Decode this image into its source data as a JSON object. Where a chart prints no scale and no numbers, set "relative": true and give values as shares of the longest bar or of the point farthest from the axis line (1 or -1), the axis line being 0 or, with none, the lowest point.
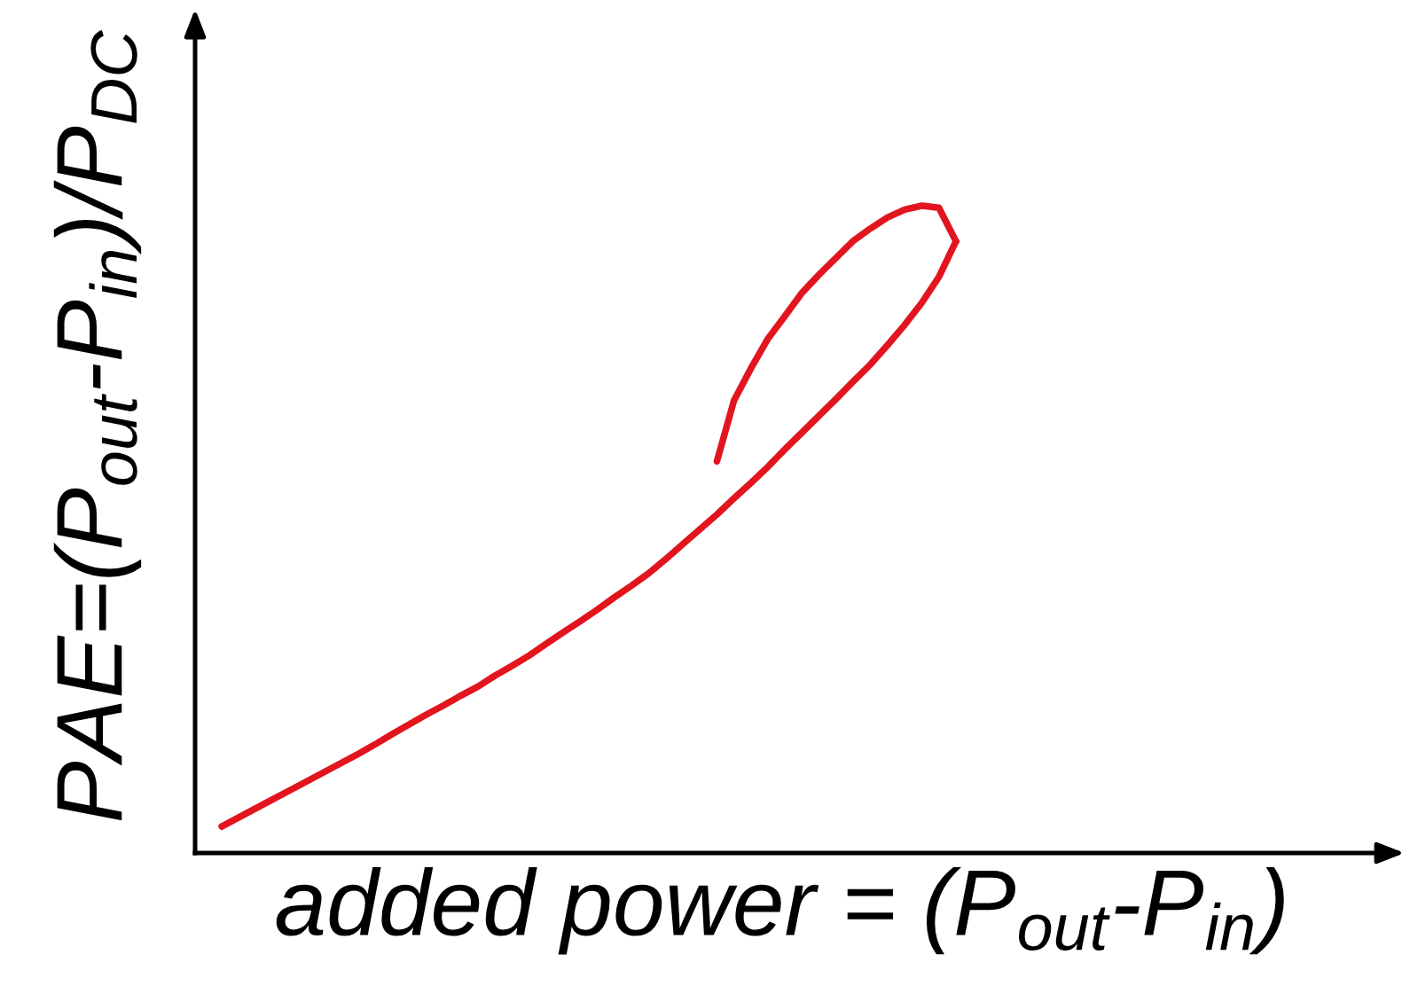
{
  "chart_data": {
    "type": "line",
    "relative": true,
    "line_style": "solid",
    "xlabel": "added power = (P$_{out}$-P$_{in}$)",
    "ylabel": "PAE=(P$_{out}$-P$_{in}$)/P$_{DC}$",
    "categories": [
      null,
      null,
      null,
      null,
      null,
      null,
      null,
      null,
      null,
      null,
      null,
      null,
      null,
      null,
      null,
      null,
      null,
      null,
      null,
      null,
      null,
      null,
      null,
      null,
      null,
      null,
      null,
      null,
      null,
      null,
      null,
      null,
      null,
      null,
      null,
      null,
      null,
      null,
      null,
      null,
      null,
      null,
      null,
      null
    ],
    "series": [
      {
        "color": "#e2151f",
        "values": [
          0.041,
          0.055,
          0.069,
          0.083,
          0.097,
          0.111,
          0.125,
          0.139,
          0.153,
          0.168,
          0.184,
          0.199,
          0.214,
          0.228,
          0.243,
          0.257,
          0.274,
          0.289,
          0.305,
          0.323,
          0.341,
          0.358,
          0.376,
          0.395,
          0.413,
          0.432,
          0.454,
          0.477,
          0.5,
          0.523,
          0.548,
          0.572,
          0.597,
          0.624,
          0.65,
          0.676,
          0.702,
          0.729,
          0.755,
          0.785,
          0.816,
          0.85,
          0.89,
          0.945
        ]
      },
      {
        "color": "#e2151f",
        "values": [
          null,
          null,
          null,
          null,
          null,
          null,
          null,
          null,
          null,
          null,
          null,
          null,
          null,
          null,
          null,
          null,
          null,
          null,
          null,
          null,
          null,
          null,
          null,
          null,
          null,
          null,
          null,
          null,
          null,
          0.605,
          0.699,
          0.749,
          0.795,
          0.83,
          0.866,
          0.894,
          0.92,
          0.946,
          0.965,
          0.982,
          0.994,
          1.0,
          0.997,
          0.945
        ]
      }
    ]
  }
}
